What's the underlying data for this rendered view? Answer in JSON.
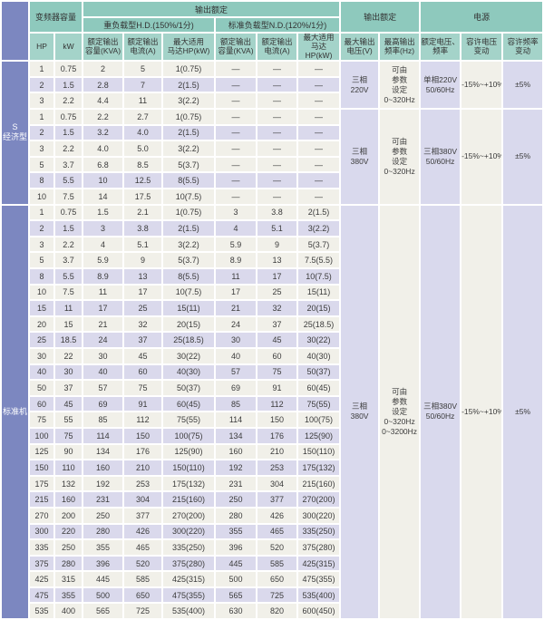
{
  "colors": {
    "header_teal": "#8ec9bd",
    "header_teal_light": "#a4d3c9",
    "label_blue": "#7c87c0",
    "row_cream": "#f1f0e9",
    "row_purple": "#dad9ec",
    "gap_white": "#ffffff",
    "text_dark": "#3b3b3b"
  },
  "header": {
    "capacity": "变频器容量",
    "output_rating": "输出额定",
    "hd_group": "重负载型H.D.(150%/1分)",
    "nd_group": "标准负载型N.D.(120%/1分)",
    "hp": "HP",
    "kw": "kW",
    "rated_kva": "额定输出\n容量(KVA)",
    "rated_amp": "额定输出\n电流(A)",
    "max_motor": "最大适用\n马达HP(kW)",
    "output_rating_right": "输出额定",
    "max_voltage": "最大输出\n电压(V)",
    "max_freq": "最高输出\n频率(Hz)",
    "power": "电源",
    "rated_vf": "额定电压、\n频率",
    "voltage_tolerance": "容许电压\n变动",
    "freq_tolerance": "容许频率\n变动"
  },
  "sections": [
    {
      "label": "S\n经济型",
      "groups": [
        {
          "max_voltage": "三相\n220V",
          "max_freq": "可由\n参数\n设定\n0~320Hz",
          "rated_vf": "单相220V\n50/60Hz",
          "voltage_tolerance": "-15%~+10%",
          "freq_tolerance": "±5%",
          "rows": [
            [
              "1",
              "0.75",
              "2",
              "5",
              "1(0.75)",
              "—",
              "—",
              "—"
            ],
            [
              "2",
              "1.5",
              "2.8",
              "7",
              "2(1.5)",
              "—",
              "—",
              "—"
            ],
            [
              "3",
              "2.2",
              "4.4",
              "11",
              "3(2.2)",
              "—",
              "—",
              "—"
            ]
          ]
        },
        {
          "max_voltage": "三相\n380V",
          "max_freq": "可由\n参数\n设定\n0~320Hz",
          "rated_vf": "三相380V\n50/60Hz",
          "voltage_tolerance": "-15%~+10%",
          "freq_tolerance": "±5%",
          "rows": [
            [
              "1",
              "0.75",
              "2.2",
              "2.7",
              "1(0.75)",
              "—",
              "—",
              "—"
            ],
            [
              "2",
              "1.5",
              "3.2",
              "4.0",
              "2(1.5)",
              "—",
              "—",
              "—"
            ],
            [
              "3",
              "2.2",
              "4.0",
              "5.0",
              "3(2.2)",
              "—",
              "—",
              "—"
            ],
            [
              "5",
              "3.7",
              "6.8",
              "8.5",
              "5(3.7)",
              "—",
              "—",
              "—"
            ],
            [
              "8",
              "5.5",
              "10",
              "12.5",
              "8(5.5)",
              "—",
              "—",
              "—"
            ],
            [
              "10",
              "7.5",
              "14",
              "17.5",
              "10(7.5)",
              "—",
              "—",
              "—"
            ]
          ]
        }
      ]
    },
    {
      "label": "标准机",
      "groups": [
        {
          "max_voltage": "三相\n380V",
          "max_freq": "可由\n参数\n设定\n0~320Hz\n0~3200Hz",
          "rated_vf": "三相380V\n50/60Hz",
          "voltage_tolerance": "-15%~+10%",
          "freq_tolerance": "±5%",
          "rows": [
            [
              "1",
              "0.75",
              "1.5",
              "2.1",
              "1(0.75)",
              "3",
              "3.8",
              "2(1.5)"
            ],
            [
              "2",
              "1.5",
              "3",
              "3.8",
              "2(1.5)",
              "4",
              "5.1",
              "3(2.2)"
            ],
            [
              "3",
              "2.2",
              "4",
              "5.1",
              "3(2.2)",
              "5.9",
              "9",
              "5(3.7)"
            ],
            [
              "5",
              "3.7",
              "5.9",
              "9",
              "5(3.7)",
              "8.9",
              "13",
              "7.5(5.5)"
            ],
            [
              "8",
              "5.5",
              "8.9",
              "13",
              "8(5.5)",
              "11",
              "17",
              "10(7.5)"
            ],
            [
              "10",
              "7.5",
              "11",
              "17",
              "10(7.5)",
              "17",
              "25",
              "15(11)"
            ],
            [
              "15",
              "11",
              "17",
              "25",
              "15(11)",
              "21",
              "32",
              "20(15)"
            ],
            [
              "20",
              "15",
              "21",
              "32",
              "20(15)",
              "24",
              "37",
              "25(18.5)"
            ],
            [
              "25",
              "18.5",
              "24",
              "37",
              "25(18.5)",
              "30",
              "45",
              "30(22)"
            ],
            [
              "30",
              "22",
              "30",
              "45",
              "30(22)",
              "40",
              "60",
              "40(30)"
            ],
            [
              "40",
              "30",
              "40",
              "60",
              "40(30)",
              "57",
              "75",
              "50(37)"
            ],
            [
              "50",
              "37",
              "57",
              "75",
              "50(37)",
              "69",
              "91",
              "60(45)"
            ],
            [
              "60",
              "45",
              "69",
              "91",
              "60(45)",
              "85",
              "112",
              "75(55)"
            ],
            [
              "75",
              "55",
              "85",
              "112",
              "75(55)",
              "114",
              "150",
              "100(75)"
            ],
            [
              "100",
              "75",
              "114",
              "150",
              "100(75)",
              "134",
              "176",
              "125(90)"
            ],
            [
              "125",
              "90",
              "134",
              "176",
              "125(90)",
              "160",
              "210",
              "150(110)"
            ],
            [
              "150",
              "110",
              "160",
              "210",
              "150(110)",
              "192",
              "253",
              "175(132)"
            ],
            [
              "175",
              "132",
              "192",
              "253",
              "175(132)",
              "231",
              "304",
              "215(160)"
            ],
            [
              "215",
              "160",
              "231",
              "304",
              "215(160)",
              "250",
              "377",
              "270(200)"
            ],
            [
              "270",
              "200",
              "250",
              "377",
              "270(200)",
              "280",
              "426",
              "300(220)"
            ],
            [
              "300",
              "220",
              "280",
              "426",
              "300(220)",
              "355",
              "465",
              "335(250)"
            ],
            [
              "335",
              "250",
              "355",
              "465",
              "335(250)",
              "396",
              "520",
              "375(280)"
            ],
            [
              "375",
              "280",
              "396",
              "520",
              "375(280)",
              "445",
              "585",
              "425(315)"
            ],
            [
              "425",
              "315",
              "445",
              "585",
              "425(315)",
              "500",
              "650",
              "475(355)"
            ],
            [
              "475",
              "355",
              "500",
              "650",
              "475(355)",
              "565",
              "725",
              "535(400)"
            ],
            [
              "535",
              "400",
              "565",
              "725",
              "535(400)",
              "630",
              "820",
              "600(450)"
            ]
          ]
        }
      ]
    }
  ]
}
